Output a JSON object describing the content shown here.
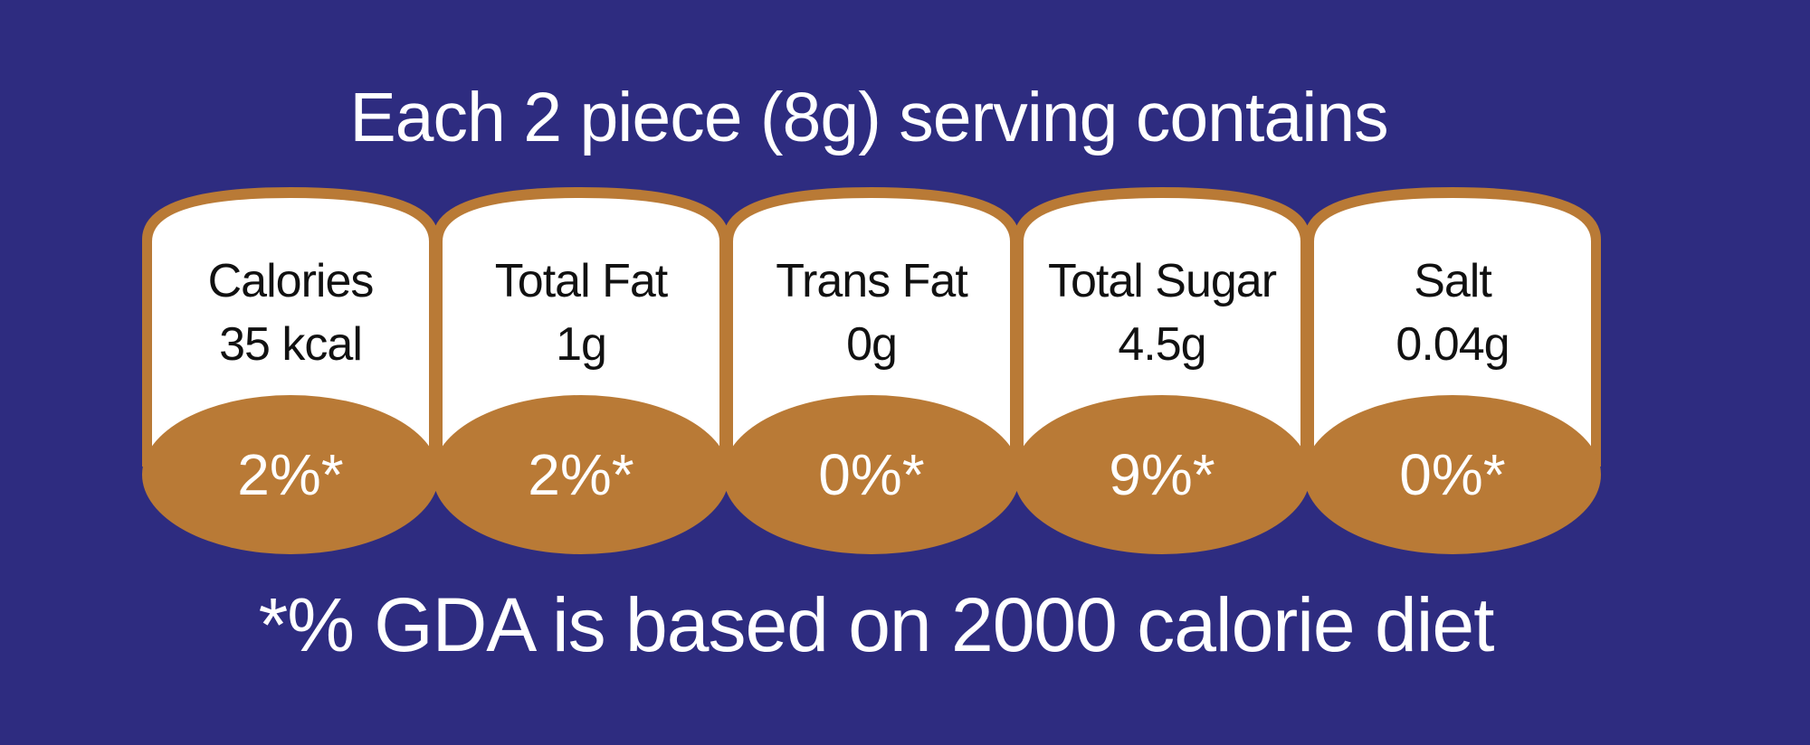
{
  "heading": "Each 2 piece (8g) serving contains",
  "colors": {
    "background": "#2e2c80",
    "bronze": "#b97a36",
    "panel_fill": "#ffffff"
  },
  "nutrients": [
    {
      "name": "Calories",
      "amount": "35 kcal",
      "percent": "2%*"
    },
    {
      "name": "Total Fat",
      "amount": "1g",
      "percent": "2%*"
    },
    {
      "name": "Trans Fat",
      "amount": "0g",
      "percent": "0%*"
    },
    {
      "name": "Total Sugar",
      "amount": "4.5g",
      "percent": "9%*"
    },
    {
      "name": "Salt",
      "amount": "0.04g",
      "percent": "0%*"
    }
  ],
  "footnote": "*% GDA is based on 2000 calorie diet"
}
